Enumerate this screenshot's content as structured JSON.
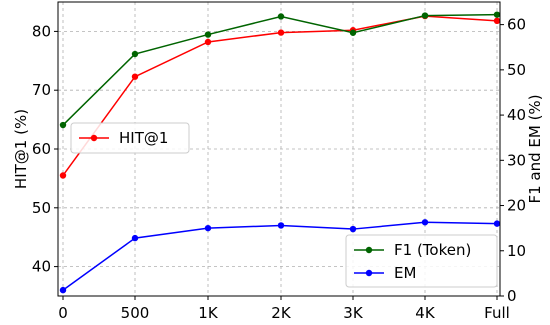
{
  "chart_data": {
    "type": "line",
    "categories": [
      "0",
      "500",
      "1K",
      "2K",
      "3K",
      "4K",
      "Full"
    ],
    "left_axis": {
      "label": "HIT@1 (%)",
      "ylim": [
        35,
        85
      ],
      "ticks": [
        40,
        50,
        60,
        70,
        80
      ]
    },
    "right_axis": {
      "label": "F1 and EM (%)",
      "ylim": [
        0,
        65
      ],
      "ticks": [
        0,
        10,
        20,
        30,
        40,
        50,
        60
      ]
    },
    "grid": true,
    "series": [
      {
        "name": "HIT@1",
        "axis": "left",
        "color": "#ff0000",
        "values": [
          55.5,
          72.3,
          78.2,
          79.8,
          80.2,
          82.6,
          81.8
        ]
      },
      {
        "name": "F1 (Token)",
        "axis": "right",
        "color": "#006400",
        "values": [
          37.8,
          53.5,
          57.8,
          61.8,
          58.2,
          62.0,
          62.2
        ]
      },
      {
        "name": "EM",
        "axis": "right",
        "color": "#0000ff",
        "values": [
          1.3,
          12.8,
          15.0,
          15.6,
          14.8,
          16.3,
          16.0
        ]
      }
    ],
    "legends": [
      {
        "placement": "center-left",
        "entries": [
          "HIT@1"
        ]
      },
      {
        "placement": "bottom-right",
        "entries": [
          "F1 (Token)",
          "EM"
        ]
      }
    ]
  }
}
